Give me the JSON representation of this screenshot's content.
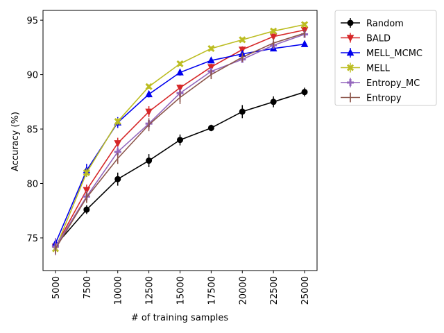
{
  "chart_data": {
    "type": "line",
    "title": "",
    "xlabel": "# of training samples",
    "ylabel": "Accuracy (%)",
    "x": [
      5000,
      7500,
      10000,
      12500,
      15000,
      17500,
      20000,
      22500,
      25000
    ],
    "xticks": [
      "5000",
      "7500",
      "10000",
      "12500",
      "15000",
      "17500",
      "20000",
      "22500",
      "25000"
    ],
    "xlim": [
      4000,
      26000
    ],
    "ylim": [
      72.0,
      95.9
    ],
    "yticks": [
      75,
      80,
      85,
      90,
      95
    ],
    "ytick_labels": [
      "75",
      "80",
      "85",
      "90",
      "95"
    ],
    "grid": false,
    "legend_position": "outside-top-right",
    "series": [
      {
        "name": "Random",
        "color": "#000000",
        "marker": "circle",
        "values": [
          74.3,
          77.6,
          80.4,
          82.1,
          84.0,
          85.1,
          86.6,
          87.5,
          88.4
        ],
        "errors": [
          0.3,
          0.4,
          0.6,
          0.6,
          0.5,
          0.3,
          0.6,
          0.5,
          0.4
        ]
      },
      {
        "name": "BALD",
        "color": "#d62728",
        "marker": "triangle-down",
        "values": [
          74.2,
          79.4,
          83.7,
          86.6,
          88.8,
          90.7,
          92.3,
          93.5,
          94.1
        ],
        "errors": [
          0.3,
          0.5,
          0.5,
          0.5,
          0.3,
          0.3,
          0.3,
          0.2,
          0.2
        ]
      },
      {
        "name": "MELL_MCMC",
        "color": "#0000ee",
        "marker": "triangle-up",
        "values": [
          74.5,
          81.2,
          85.6,
          88.2,
          90.2,
          91.3,
          91.9,
          92.4,
          92.8
        ],
        "errors": [
          0.4,
          0.6,
          0.5,
          0.3,
          0.3,
          0.2,
          0.2,
          0.2,
          0.2
        ]
      },
      {
        "name": "MELL",
        "color": "#bcbd22",
        "marker": "x",
        "values": [
          74.0,
          81.0,
          85.7,
          88.9,
          91.0,
          92.4,
          93.2,
          94.0,
          94.6
        ],
        "errors": [
          0.3,
          0.4,
          0.3,
          0.2,
          0.2,
          0.2,
          0.2,
          0.2,
          0.2
        ]
      },
      {
        "name": "Entropy_MC",
        "color": "#9467bd",
        "marker": "plus",
        "values": [
          74.2,
          78.8,
          82.9,
          85.5,
          88.3,
          90.3,
          91.4,
          92.7,
          93.7
        ],
        "errors": [
          0.8,
          0.5,
          0.5,
          0.4,
          0.3,
          0.3,
          0.3,
          0.2,
          0.2
        ]
      },
      {
        "name": "Entropy",
        "color": "#8c564b",
        "marker": "vline",
        "values": [
          74.0,
          78.7,
          82.3,
          85.4,
          87.9,
          90.0,
          91.6,
          92.9,
          93.8
        ],
        "errors": [
          0.5,
          0.5,
          0.5,
          0.6,
          0.6,
          0.4,
          0.3,
          0.2,
          0.2
        ]
      }
    ]
  }
}
